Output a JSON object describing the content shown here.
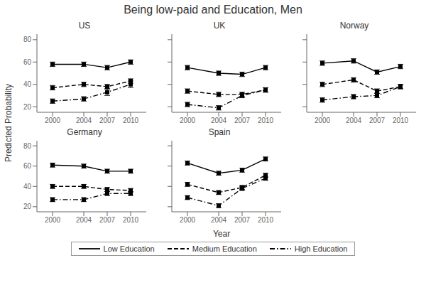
{
  "title": "Being low-paid and Education, Men",
  "xlabel": "Year",
  "ylabel": "Predicted Probability",
  "legend": "bottom",
  "chart_data": [
    {
      "type": "line",
      "title": "US",
      "x": [
        2000,
        2004,
        2007,
        2010
      ],
      "xlim": [
        1998,
        2012
      ],
      "xticks": [
        2000,
        2004,
        2007,
        2010
      ],
      "ylim": [
        15,
        85
      ],
      "yticks": [
        20,
        40,
        60,
        80
      ],
      "grid": false,
      "series": [
        {
          "name": "Low Education",
          "color": "#000000",
          "line_style": "solid",
          "marker": "square",
          "values": [
            58,
            58,
            55,
            60
          ],
          "errors": [
            2,
            2,
            2,
            2
          ]
        },
        {
          "name": "Medium Education",
          "color": "#000000",
          "line_style": "dashed",
          "marker": "square",
          "values": [
            37,
            40,
            38,
            43
          ],
          "errors": [
            2,
            2,
            2,
            2
          ]
        },
        {
          "name": "High Education",
          "color": "#000000",
          "line_style": "dashdot",
          "marker": "square",
          "values": [
            25,
            27,
            33,
            40
          ],
          "errors": [
            2,
            2,
            3,
            3
          ]
        }
      ]
    },
    {
      "type": "line",
      "title": "UK",
      "x": [
        2000,
        2004,
        2007,
        2010
      ],
      "xlim": [
        1998,
        2012
      ],
      "xticks": [
        2000,
        2004,
        2007,
        2010
      ],
      "ylim": [
        15,
        85
      ],
      "yticks": [
        20,
        40,
        60,
        80
      ],
      "grid": false,
      "tick_labels": "x",
      "series": [
        {
          "name": "Low Education",
          "color": "#000000",
          "line_style": "solid",
          "marker": "square",
          "values": [
            55,
            50,
            49,
            55
          ],
          "errors": [
            2,
            2,
            2,
            2
          ]
        },
        {
          "name": "Medium Education",
          "color": "#000000",
          "line_style": "dashed",
          "marker": "square",
          "values": [
            34,
            31,
            31,
            35
          ],
          "errors": [
            2,
            2,
            2,
            2
          ]
        },
        {
          "name": "High Education",
          "color": "#000000",
          "line_style": "dashdot",
          "marker": "square",
          "values": [
            22,
            19,
            30,
            35
          ],
          "errors": [
            2,
            2,
            2,
            2
          ]
        }
      ]
    },
    {
      "type": "line",
      "title": "Norway",
      "x": [
        2000,
        2004,
        2007,
        2010
      ],
      "xlim": [
        1998,
        2012
      ],
      "xticks": [
        2000,
        2004,
        2007,
        2010
      ],
      "ylim": [
        15,
        85
      ],
      "yticks": [
        20,
        40,
        60,
        80
      ],
      "grid": false,
      "tick_labels": "x",
      "series": [
        {
          "name": "Low Education",
          "color": "#000000",
          "line_style": "solid",
          "marker": "square",
          "values": [
            59,
            61,
            51,
            56
          ],
          "errors": [
            2,
            2,
            2,
            2
          ]
        },
        {
          "name": "Medium Education",
          "color": "#000000",
          "line_style": "dashed",
          "marker": "square",
          "values": [
            40,
            44,
            34,
            38
          ],
          "errors": [
            2,
            2,
            2,
            2
          ]
        },
        {
          "name": "High Education",
          "color": "#000000",
          "line_style": "dashdot",
          "marker": "square",
          "values": [
            26,
            29,
            30,
            38
          ],
          "errors": [
            2,
            2,
            2,
            2
          ]
        }
      ]
    },
    {
      "type": "line",
      "title": "Germany",
      "x": [
        2000,
        2004,
        2007,
        2010
      ],
      "xlim": [
        1998,
        2012
      ],
      "xticks": [
        2000,
        2004,
        2007,
        2010
      ],
      "ylim": [
        15,
        85
      ],
      "yticks": [
        20,
        40,
        60,
        80
      ],
      "grid": false,
      "series": [
        {
          "name": "Low Education",
          "color": "#000000",
          "line_style": "solid",
          "marker": "square",
          "values": [
            61,
            60,
            55,
            55
          ],
          "errors": [
            2,
            2,
            2,
            2
          ]
        },
        {
          "name": "Medium Education",
          "color": "#000000",
          "line_style": "dashed",
          "marker": "square",
          "values": [
            40,
            40,
            37,
            36
          ],
          "errors": [
            2,
            2,
            2,
            2
          ]
        },
        {
          "name": "High Education",
          "color": "#000000",
          "line_style": "dashdot",
          "marker": "square",
          "values": [
            27,
            27,
            33,
            33
          ],
          "errors": [
            2,
            2,
            2,
            2
          ]
        }
      ]
    },
    {
      "type": "line",
      "title": "Spain",
      "x": [
        2000,
        2004,
        2007,
        2010
      ],
      "xlim": [
        1998,
        2012
      ],
      "xticks": [
        2000,
        2004,
        2007,
        2010
      ],
      "ylim": [
        15,
        85
      ],
      "yticks": [
        20,
        40,
        60,
        80
      ],
      "grid": false,
      "tick_labels": "x",
      "series": [
        {
          "name": "Low Education",
          "color": "#000000",
          "line_style": "solid",
          "marker": "square",
          "values": [
            63,
            53,
            56,
            67
          ],
          "errors": [
            2,
            2,
            2,
            2
          ]
        },
        {
          "name": "Medium Education",
          "color": "#000000",
          "line_style": "dashed",
          "marker": "square",
          "values": [
            42,
            34,
            39,
            51
          ],
          "errors": [
            2,
            2,
            2,
            2
          ]
        },
        {
          "name": "High Education",
          "color": "#000000",
          "line_style": "dashdot",
          "marker": "square",
          "values": [
            29,
            21,
            38,
            48
          ],
          "errors": [
            2,
            2,
            2,
            2
          ]
        }
      ]
    }
  ]
}
